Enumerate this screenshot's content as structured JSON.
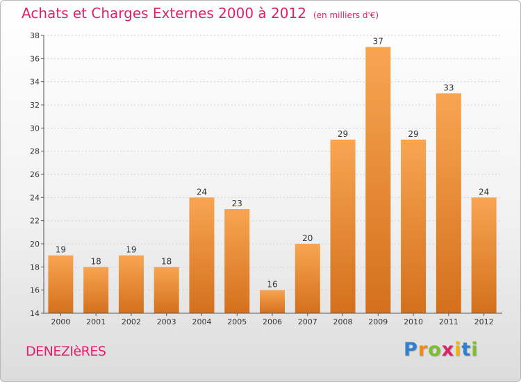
{
  "header": {
    "title": "Achats et Charges Externes 2000 à 2012",
    "unit": "(en milliers d'€)"
  },
  "commune": "DENEZIèRES",
  "brand": {
    "name": "Proxiti",
    "letters": [
      {
        "ch": "P",
        "color": "#2f7fd1"
      },
      {
        "ch": "r",
        "color": "#f08a1c"
      },
      {
        "ch": "o",
        "color": "#7cbf2a"
      },
      {
        "ch": "x",
        "color": "#e0206a"
      },
      {
        "ch": "i",
        "color": "#f6b400"
      },
      {
        "ch": "t",
        "color": "#2f7fd1"
      },
      {
        "ch": "i",
        "color": "#7cbf2a"
      }
    ]
  },
  "colors": {
    "accent": "#e0206a",
    "bar_top": "#f8a552",
    "bar_bottom": "#d4701c"
  },
  "chart_data": {
    "type": "bar",
    "title": "Achats et Charges Externes 2000 à 2012",
    "subtitle": "(en milliers d'€)",
    "categories": [
      "2000",
      "2001",
      "2002",
      "2003",
      "2004",
      "2005",
      "2006",
      "2007",
      "2008",
      "2009",
      "2010",
      "2011",
      "2012"
    ],
    "values": [
      19,
      18,
      19,
      18,
      24,
      23,
      16,
      20,
      29,
      37,
      29,
      33,
      24
    ],
    "ylim": [
      14,
      38
    ],
    "yticks": [
      14,
      16,
      18,
      20,
      22,
      24,
      26,
      28,
      30,
      32,
      34,
      36,
      38
    ],
    "grid": true,
    "data_labels": true
  }
}
